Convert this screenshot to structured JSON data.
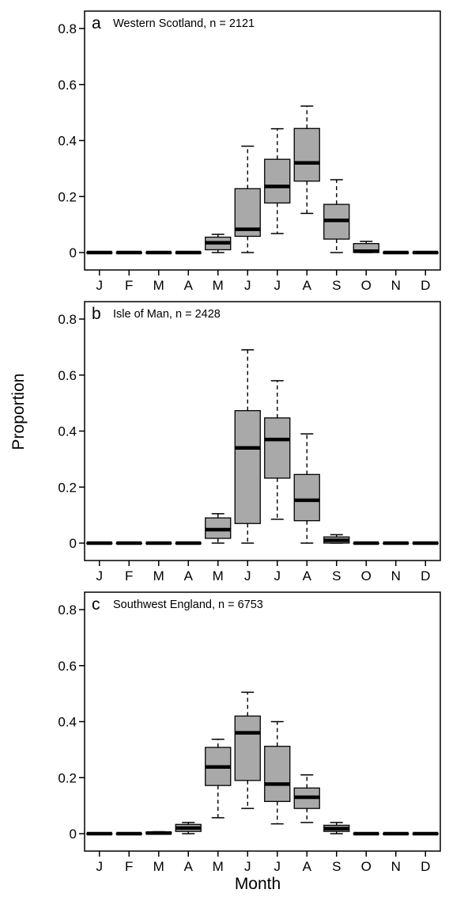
{
  "figure": {
    "ylabel": "Proportion",
    "xlabel": "Month"
  },
  "chart_data": [
    {
      "type": "boxplot",
      "panel_letter": "a",
      "title": "Western Scotland, n = 2121",
      "categories": [
        "J",
        "F",
        "M",
        "A",
        "M",
        "J",
        "J",
        "A",
        "S",
        "O",
        "N",
        "D"
      ],
      "ylim": [
        0,
        0.8
      ],
      "yticks": [
        0,
        0.2,
        0.4,
        0.6,
        0.8
      ],
      "ytick_labels": [
        "0",
        "0.2",
        "0.4",
        "0.6",
        "0.8"
      ],
      "box_color": "#a9a9a9",
      "boxes": [
        {
          "min": 0,
          "q1": 0,
          "median": 0,
          "q3": 0,
          "max": 0
        },
        {
          "min": 0,
          "q1": 0,
          "median": 0,
          "q3": 0,
          "max": 0
        },
        {
          "min": 0,
          "q1": 0,
          "median": 0,
          "q3": 0,
          "max": 0
        },
        {
          "min": 0,
          "q1": 0,
          "median": 0,
          "q3": 0,
          "max": 0
        },
        {
          "min": 0.0,
          "q1": 0.01,
          "median": 0.035,
          "q3": 0.055,
          "max": 0.065
        },
        {
          "min": 0.0,
          "q1": 0.058,
          "median": 0.083,
          "q3": 0.228,
          "max": 0.38
        },
        {
          "min": 0.068,
          "q1": 0.177,
          "median": 0.236,
          "q3": 0.333,
          "max": 0.442
        },
        {
          "min": 0.14,
          "q1": 0.255,
          "median": 0.32,
          "q3": 0.443,
          "max": 0.523
        },
        {
          "min": 0.0,
          "q1": 0.048,
          "median": 0.115,
          "q3": 0.172,
          "max": 0.26
        },
        {
          "min": 0,
          "q1": 0,
          "median": 0.005,
          "q3": 0.032,
          "max": 0.04
        },
        {
          "min": 0,
          "q1": 0,
          "median": 0,
          "q3": 0,
          "max": 0
        },
        {
          "min": 0,
          "q1": 0,
          "median": 0,
          "q3": 0,
          "max": 0
        }
      ]
    },
    {
      "type": "boxplot",
      "panel_letter": "b",
      "title": "Isle of Man, n = 2428",
      "categories": [
        "J",
        "F",
        "M",
        "A",
        "M",
        "J",
        "J",
        "A",
        "S",
        "O",
        "N",
        "D"
      ],
      "ylim": [
        0,
        0.8
      ],
      "yticks": [
        0,
        0.2,
        0.4,
        0.6,
        0.8
      ],
      "ytick_labels": [
        "0",
        "0.2",
        "0.4",
        "0.6",
        "0.8"
      ],
      "box_color": "#a9a9a9",
      "boxes": [
        {
          "min": 0,
          "q1": 0,
          "median": 0,
          "q3": 0,
          "max": 0
        },
        {
          "min": 0,
          "q1": 0,
          "median": 0,
          "q3": 0,
          "max": 0
        },
        {
          "min": 0,
          "q1": 0,
          "median": 0,
          "q3": 0,
          "max": 0
        },
        {
          "min": 0,
          "q1": 0,
          "median": 0,
          "q3": 0,
          "max": 0
        },
        {
          "min": 0.0,
          "q1": 0.017,
          "median": 0.048,
          "q3": 0.09,
          "max": 0.105
        },
        {
          "min": 0.0,
          "q1": 0.07,
          "median": 0.34,
          "q3": 0.473,
          "max": 0.69
        },
        {
          "min": 0.085,
          "q1": 0.232,
          "median": 0.37,
          "q3": 0.447,
          "max": 0.58
        },
        {
          "min": 0.0,
          "q1": 0.08,
          "median": 0.153,
          "q3": 0.245,
          "max": 0.39
        },
        {
          "min": 0,
          "q1": 0.0,
          "median": 0.01,
          "q3": 0.022,
          "max": 0.03
        },
        {
          "min": 0,
          "q1": 0,
          "median": 0,
          "q3": 0,
          "max": 0
        },
        {
          "min": 0,
          "q1": 0,
          "median": 0,
          "q3": 0,
          "max": 0
        },
        {
          "min": 0,
          "q1": 0,
          "median": 0,
          "q3": 0,
          "max": 0
        }
      ]
    },
    {
      "type": "boxplot",
      "panel_letter": "c",
      "title": "Southwest England, n = 6753",
      "categories": [
        "J",
        "F",
        "M",
        "A",
        "M",
        "J",
        "J",
        "A",
        "S",
        "O",
        "N",
        "D"
      ],
      "ylim": [
        0,
        0.8
      ],
      "yticks": [
        0,
        0.2,
        0.4,
        0.6,
        0.8
      ],
      "ytick_labels": [
        "0",
        "0.2",
        "0.4",
        "0.6",
        "0.8"
      ],
      "box_color": "#a9a9a9",
      "boxes": [
        {
          "min": 0,
          "q1": 0,
          "median": 0,
          "q3": 0,
          "max": 0
        },
        {
          "min": 0,
          "q1": 0,
          "median": 0,
          "q3": 0,
          "max": 0
        },
        {
          "min": 0,
          "q1": 0.0,
          "median": 0.002,
          "q3": 0.005,
          "max": 0.007
        },
        {
          "min": 0.0,
          "q1": 0.008,
          "median": 0.02,
          "q3": 0.033,
          "max": 0.04
        },
        {
          "min": 0.057,
          "q1": 0.172,
          "median": 0.238,
          "q3": 0.308,
          "max": 0.337
        },
        {
          "min": 0.09,
          "q1": 0.19,
          "median": 0.36,
          "q3": 0.42,
          "max": 0.505
        },
        {
          "min": 0.035,
          "q1": 0.115,
          "median": 0.177,
          "q3": 0.312,
          "max": 0.4
        },
        {
          "min": 0.04,
          "q1": 0.09,
          "median": 0.13,
          "q3": 0.163,
          "max": 0.21
        },
        {
          "min": 0.0,
          "q1": 0.008,
          "median": 0.018,
          "q3": 0.03,
          "max": 0.04
        },
        {
          "min": 0,
          "q1": 0,
          "median": 0,
          "q3": 0,
          "max": 0
        },
        {
          "min": 0,
          "q1": 0,
          "median": 0,
          "q3": 0,
          "max": 0
        },
        {
          "min": 0,
          "q1": 0,
          "median": 0,
          "q3": 0,
          "max": 0.002
        }
      ]
    }
  ]
}
